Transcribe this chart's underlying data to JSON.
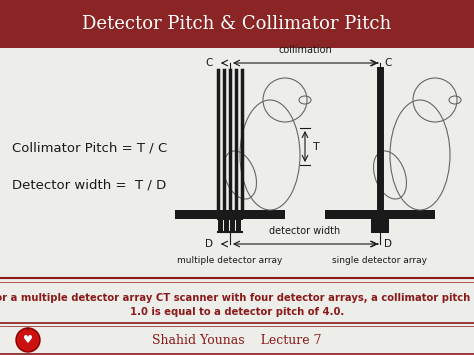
{
  "title": "Detector Pitch & Collimator Pitch",
  "title_bg_color": "#8B2525",
  "title_text_color": "#FFFFFF",
  "slide_bg_color": "#EDEDEA",
  "left_text_line1": "Collimator Pitch = T / C",
  "left_text_line2": "Detector width =  T / D",
  "left_text_color": "#1A1A1A",
  "bottom_text_line1": "For a multiple detector array CT scanner with four detector arrays, a collimator pitch of",
  "bottom_text_line2": "1.0 is equal to a detector pitch of 4.0.",
  "bottom_text_color": "#8B1A1A",
  "footer_text": "Shahid Younas    Lecture 7",
  "footer_text_color": "#8B1A1A",
  "divider_color": "#8B1A1A",
  "bar_color": "#1A1A1A"
}
